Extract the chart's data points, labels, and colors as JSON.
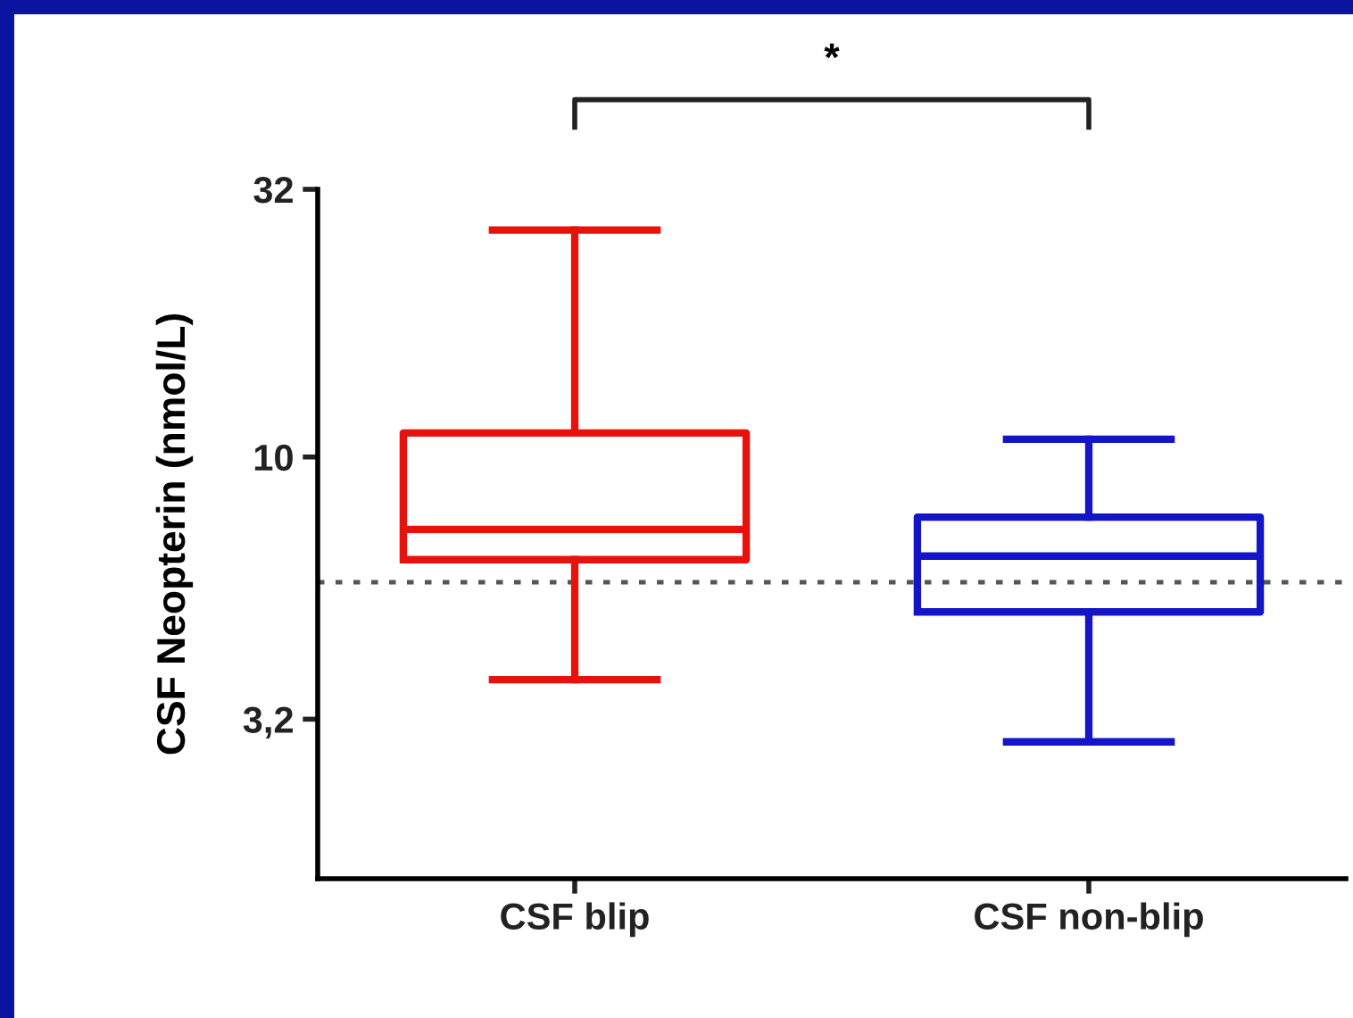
{
  "chart_data": {
    "type": "box",
    "ylabel": "CSF Neopterin (nmol/L)",
    "categories": [
      "CSF blip",
      "CSF non-blip"
    ],
    "series": [
      {
        "color": "#e8120c",
        "boxes": [
          {
            "low": 3.8,
            "q1": 6.4,
            "median": 7.3,
            "q3": 11.1,
            "high": 26.8
          },
          null
        ]
      },
      {
        "color": "#1414c8",
        "boxes": [
          null,
          {
            "low": 2.9,
            "q1": 5.1,
            "median": 6.5,
            "q3": 7.7,
            "high": 10.8
          }
        ]
      }
    ],
    "log": true,
    "ylim": [
      1.6,
      32
    ],
    "yticks": [
      {
        "value": 3.2,
        "label": "3,2"
      },
      10,
      32
    ],
    "ref_lines": [
      {
        "axis": "y",
        "value": 5.8,
        "color": "#555555",
        "line_style": "dotted"
      }
    ],
    "annotations": [
      "*"
    ],
    "grid": false
  }
}
